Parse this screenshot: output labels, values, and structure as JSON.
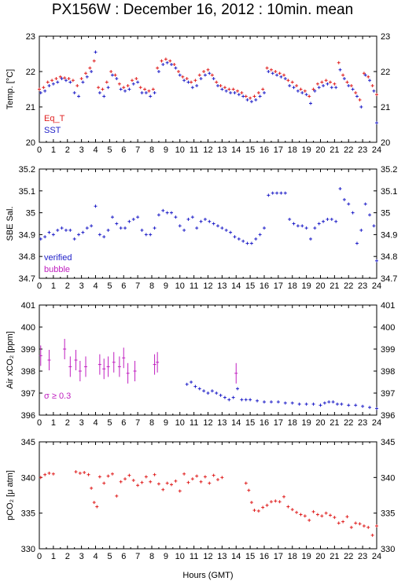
{
  "title": "PX156W : December 16, 2012 : 10min. mean",
  "xlabel": "Hours (GMT)",
  "colors": {
    "red": "#e02020",
    "blue": "#2020c8",
    "magenta": "#c020c0",
    "axis": "#000000"
  },
  "chart_data": [
    {
      "type": "scatter",
      "ylabel": "Temp. [°C]",
      "xlim": [
        0,
        24
      ],
      "ylim": [
        20,
        23
      ],
      "yticks": [
        20,
        21,
        22,
        23
      ],
      "xticks": [
        0,
        1,
        2,
        3,
        4,
        5,
        6,
        7,
        8,
        9,
        10,
        11,
        12,
        13,
        14,
        15,
        16,
        17,
        18,
        19,
        20,
        21,
        22,
        23,
        24
      ],
      "legend": {
        "placement": "bottom-left",
        "entries": [
          {
            "label": "Eq_T",
            "color": "#e02020"
          },
          {
            "label": "SST",
            "color": "#2020c8"
          }
        ]
      },
      "series": [
        {
          "name": "Eq_T",
          "color": "#e02020",
          "x": [
            0.0,
            0.3,
            0.6,
            0.9,
            1.2,
            1.5,
            1.8,
            2.1,
            2.4,
            2.7,
            3.0,
            3.3,
            3.6,
            3.9,
            4.2,
            4.5,
            4.8,
            5.1,
            5.4,
            5.7,
            6.0,
            6.3,
            6.6,
            6.9,
            7.2,
            7.5,
            7.8,
            8.1,
            8.4,
            8.7,
            9.0,
            9.3,
            9.6,
            9.9,
            10.2,
            10.5,
            10.8,
            11.1,
            11.4,
            11.7,
            12.0,
            12.3,
            12.6,
            12.9,
            13.2,
            13.5,
            13.8,
            14.1,
            14.4,
            14.7,
            15.0,
            15.3,
            15.6,
            15.9,
            16.2,
            16.5,
            16.8,
            17.1,
            17.4,
            17.7,
            18.0,
            18.3,
            18.6,
            18.9,
            19.2,
            19.5,
            19.8,
            20.1,
            20.4,
            20.7,
            21.0,
            21.3,
            21.6,
            21.9,
            22.2,
            22.5,
            22.8,
            23.1,
            23.4,
            23.7,
            24.0
          ],
          "y": [
            21.5,
            21.55,
            21.7,
            21.75,
            21.8,
            21.85,
            21.82,
            21.8,
            21.75,
            21.6,
            21.8,
            21.95,
            22.1,
            22.3,
            21.55,
            21.5,
            21.7,
            22.0,
            21.9,
            21.65,
            21.55,
            21.6,
            21.75,
            21.8,
            21.55,
            21.5,
            21.45,
            21.5,
            22.1,
            22.3,
            22.35,
            22.3,
            22.2,
            22.0,
            21.85,
            21.8,
            21.7,
            21.75,
            21.9,
            22.0,
            22.05,
            21.9,
            21.7,
            21.6,
            21.55,
            21.5,
            21.5,
            21.45,
            21.4,
            21.3,
            21.25,
            21.3,
            21.4,
            21.5,
            22.1,
            22.05,
            22.0,
            21.95,
            21.9,
            21.75,
            21.7,
            21.6,
            21.5,
            21.45,
            21.3,
            21.5,
            21.65,
            21.7,
            21.75,
            21.7,
            21.65,
            22.25,
            21.9,
            21.7,
            21.6,
            21.4,
            21.2,
            21.95,
            21.85,
            21.6,
            21.35
          ]
        },
        {
          "name": "SST",
          "color": "#2020c8",
          "x": [
            0.1,
            0.4,
            0.7,
            1.0,
            1.3,
            1.6,
            1.9,
            2.2,
            2.5,
            2.8,
            3.1,
            3.4,
            3.7,
            4.0,
            4.3,
            4.6,
            4.9,
            5.2,
            5.5,
            5.8,
            6.1,
            6.4,
            6.7,
            7.0,
            7.3,
            7.6,
            7.9,
            8.2,
            8.5,
            8.8,
            9.1,
            9.4,
            9.7,
            10.0,
            10.3,
            10.6,
            10.9,
            11.2,
            11.5,
            11.8,
            12.1,
            12.4,
            12.7,
            13.0,
            13.3,
            13.6,
            13.9,
            14.2,
            14.5,
            14.8,
            15.1,
            15.4,
            15.7,
            16.0,
            16.3,
            16.6,
            16.9,
            17.2,
            17.5,
            17.8,
            18.1,
            18.4,
            18.7,
            19.0,
            19.3,
            19.6,
            19.9,
            20.2,
            20.5,
            20.8,
            21.1,
            21.4,
            21.7,
            22.0,
            22.3,
            22.6,
            22.9,
            23.2,
            23.5,
            23.8,
            24.0
          ],
          "y": [
            21.4,
            21.45,
            21.6,
            21.65,
            21.7,
            21.8,
            21.75,
            21.7,
            21.4,
            21.3,
            21.7,
            21.85,
            22.0,
            22.55,
            21.4,
            21.3,
            21.55,
            21.9,
            21.8,
            21.5,
            21.45,
            21.5,
            21.65,
            21.7,
            21.4,
            21.4,
            21.3,
            21.4,
            22.0,
            22.2,
            22.25,
            22.2,
            22.1,
            21.9,
            21.75,
            21.7,
            21.55,
            21.6,
            21.8,
            21.9,
            21.95,
            21.8,
            21.6,
            21.5,
            21.45,
            21.4,
            21.4,
            21.35,
            21.3,
            21.2,
            21.15,
            21.2,
            21.3,
            21.4,
            22.0,
            21.95,
            21.9,
            21.85,
            21.8,
            21.6,
            21.55,
            21.45,
            21.4,
            21.35,
            21.1,
            21.45,
            21.55,
            21.6,
            21.65,
            21.55,
            21.55,
            22.05,
            21.8,
            21.6,
            21.5,
            21.3,
            21.0,
            21.9,
            21.75,
            21.45,
            20.55
          ]
        }
      ]
    },
    {
      "type": "scatter",
      "ylabel": "SBE Sal.",
      "xlim": [
        0,
        24
      ],
      "ylim": [
        34.7,
        35.2
      ],
      "yticks": [
        34.7,
        34.8,
        34.9,
        35,
        35.1,
        35.2
      ],
      "xticks": [
        0,
        1,
        2,
        3,
        4,
        5,
        6,
        7,
        8,
        9,
        10,
        11,
        12,
        13,
        14,
        15,
        16,
        17,
        18,
        19,
        20,
        21,
        22,
        23,
        24
      ],
      "legend": {
        "placement": "bottom-left",
        "entries": [
          {
            "label": "verified",
            "color": "#2020c8"
          },
          {
            "label": "bubble",
            "color": "#c020c0"
          }
        ]
      },
      "series": [
        {
          "name": "verified",
          "color": "#2020c8",
          "x": [
            0.1,
            0.4,
            0.7,
            1.0,
            1.3,
            1.6,
            1.9,
            2.2,
            2.5,
            2.8,
            3.1,
            3.4,
            3.7,
            4.0,
            4.3,
            4.6,
            4.9,
            5.2,
            5.5,
            5.8,
            6.1,
            6.4,
            6.7,
            7.0,
            7.3,
            7.6,
            7.9,
            8.2,
            8.5,
            8.8,
            9.1,
            9.4,
            9.7,
            10.0,
            10.3,
            10.6,
            10.9,
            11.2,
            11.5,
            11.8,
            12.1,
            12.4,
            12.7,
            13.0,
            13.3,
            13.6,
            13.9,
            14.2,
            14.5,
            14.8,
            15.1,
            15.4,
            15.7,
            16.0,
            16.3,
            16.6,
            16.9,
            17.2,
            17.5,
            17.8,
            18.1,
            18.4,
            18.7,
            19.0,
            19.3,
            19.6,
            19.9,
            20.2,
            20.5,
            20.8,
            21.1,
            21.4,
            21.7,
            22.0,
            22.3,
            22.6,
            22.9,
            23.2,
            23.5,
            23.8,
            24.0
          ],
          "y": [
            34.88,
            34.89,
            34.91,
            34.9,
            34.92,
            34.93,
            34.92,
            34.92,
            34.88,
            34.9,
            34.91,
            34.93,
            34.94,
            35.03,
            34.9,
            34.89,
            34.92,
            34.98,
            34.95,
            34.93,
            34.93,
            34.96,
            34.97,
            34.98,
            34.92,
            34.9,
            34.9,
            34.93,
            34.99,
            35.01,
            35.0,
            35.0,
            34.98,
            34.94,
            34.92,
            34.97,
            34.98,
            34.93,
            34.96,
            34.97,
            34.96,
            34.95,
            34.94,
            34.93,
            34.92,
            34.91,
            34.89,
            34.88,
            34.87,
            34.86,
            34.86,
            34.88,
            34.9,
            34.93,
            35.08,
            35.09,
            35.09,
            35.09,
            35.09,
            34.97,
            34.95,
            34.94,
            34.94,
            34.93,
            34.88,
            34.93,
            34.95,
            34.96,
            34.97,
            34.97,
            34.96,
            35.11,
            35.06,
            35.04,
            35.0,
            34.86,
            34.92,
            35.04,
            34.99,
            34.94,
            34.78
          ]
        }
      ]
    },
    {
      "type": "scatter",
      "ylabel": "Air xCO₂ [ppm]",
      "xlim": [
        0,
        24
      ],
      "ylim": [
        396,
        401
      ],
      "yticks": [
        396,
        397,
        398,
        399,
        400,
        401
      ],
      "xticks": [
        0,
        1,
        2,
        3,
        4,
        5,
        6,
        7,
        8,
        9,
        10,
        11,
        12,
        13,
        14,
        15,
        16,
        17,
        18,
        19,
        20,
        21,
        22,
        23,
        24
      ],
      "annotation": "σ ≥ 0.3",
      "series": [
        {
          "name": "Air xCO2",
          "color": "#2020c8",
          "x": [
            10.5,
            10.8,
            11.1,
            11.4,
            11.7,
            12.0,
            12.3,
            12.6,
            12.9,
            13.2,
            13.5,
            13.8,
            14.1,
            14.4,
            14.7,
            15.0,
            15.5,
            16.0,
            16.5,
            17.0,
            17.5,
            18.0,
            18.5,
            19.0,
            19.5,
            20.0,
            20.3,
            20.6,
            20.9,
            21.2,
            21.5,
            22.0,
            22.5,
            23.0,
            23.5,
            24.0
          ],
          "y": [
            397.4,
            397.5,
            397.3,
            397.2,
            397.1,
            397.0,
            397.1,
            397.0,
            396.9,
            396.8,
            396.7,
            396.8,
            397.2,
            396.7,
            396.7,
            396.7,
            396.65,
            396.6,
            396.6,
            396.6,
            396.55,
            396.55,
            396.5,
            396.5,
            396.5,
            396.45,
            396.55,
            396.6,
            396.6,
            396.5,
            396.5,
            396.45,
            396.45,
            396.4,
            396.35,
            396.3
          ]
        },
        {
          "name": "bubble",
          "color": "#c020c0",
          "x": [
            0.1,
            0.7,
            1.8,
            2.2,
            2.6,
            2.9,
            3.3,
            4.3,
            4.6,
            4.9,
            5.3,
            5.7,
            6.0,
            6.3,
            6.8,
            8.2,
            8.4,
            14.0
          ],
          "y": [
            398.7,
            398.5,
            399.0,
            398.2,
            398.5,
            398.0,
            398.2,
            398.3,
            398.1,
            398.2,
            398.4,
            398.2,
            398.6,
            397.9,
            398.0,
            398.3,
            398.4,
            397.9
          ]
        }
      ]
    },
    {
      "type": "scatter",
      "ylabel": "pCO₂ [μ atm]",
      "xlim": [
        0,
        24
      ],
      "ylim": [
        330,
        345
      ],
      "yticks": [
        330,
        335,
        340,
        345
      ],
      "xticks": [
        0,
        1,
        2,
        3,
        4,
        5,
        6,
        7,
        8,
        9,
        10,
        11,
        12,
        13,
        14,
        15,
        16,
        17,
        18,
        19,
        20,
        21,
        22,
        23,
        24
      ],
      "series": [
        {
          "name": "pCO2",
          "color": "#e02020",
          "x": [
            0.1,
            0.4,
            0.7,
            1.0,
            2.6,
            2.9,
            3.2,
            3.5,
            3.7,
            3.9,
            4.1,
            4.3,
            4.6,
            4.9,
            5.2,
            5.5,
            5.8,
            6.1,
            6.4,
            6.7,
            7.0,
            7.3,
            7.6,
            7.9,
            8.2,
            8.5,
            8.8,
            9.1,
            9.4,
            9.7,
            10.0,
            10.3,
            10.6,
            10.9,
            11.2,
            11.5,
            11.8,
            12.1,
            12.4,
            12.7,
            13.0,
            14.7,
            14.9,
            15.1,
            15.3,
            15.6,
            15.9,
            16.2,
            16.5,
            16.8,
            17.1,
            17.4,
            17.7,
            18.0,
            18.3,
            18.6,
            18.9,
            19.2,
            19.5,
            19.8,
            20.1,
            20.4,
            20.7,
            21.0,
            21.3,
            21.6,
            21.9,
            22.2,
            22.5,
            22.8,
            23.1,
            23.4,
            23.7,
            24.0
          ],
          "y": [
            340.0,
            340.4,
            340.6,
            340.5,
            340.8,
            340.6,
            340.7,
            340.4,
            338.5,
            336.5,
            335.9,
            340.1,
            339.2,
            340.2,
            340.5,
            337.4,
            339.4,
            339.8,
            340.3,
            339.6,
            338.9,
            339.3,
            340.1,
            339.4,
            340.4,
            339.1,
            338.3,
            339.2,
            339.0,
            339.5,
            338.1,
            340.5,
            339.3,
            339.8,
            340.2,
            339.4,
            340.1,
            339.2,
            340.3,
            339.7,
            340.0,
            339.2,
            338.2,
            336.5,
            335.4,
            335.3,
            335.8,
            336.1,
            336.6,
            336.7,
            336.6,
            337.3,
            335.9,
            335.5,
            335.1,
            334.8,
            334.6,
            334.0,
            335.2,
            334.8,
            334.6,
            335.0,
            334.7,
            334.4,
            333.6,
            333.8,
            334.5,
            333.0,
            333.6,
            333.5,
            333.2,
            333.0,
            331.9,
            333.2
          ]
        }
      ]
    }
  ]
}
